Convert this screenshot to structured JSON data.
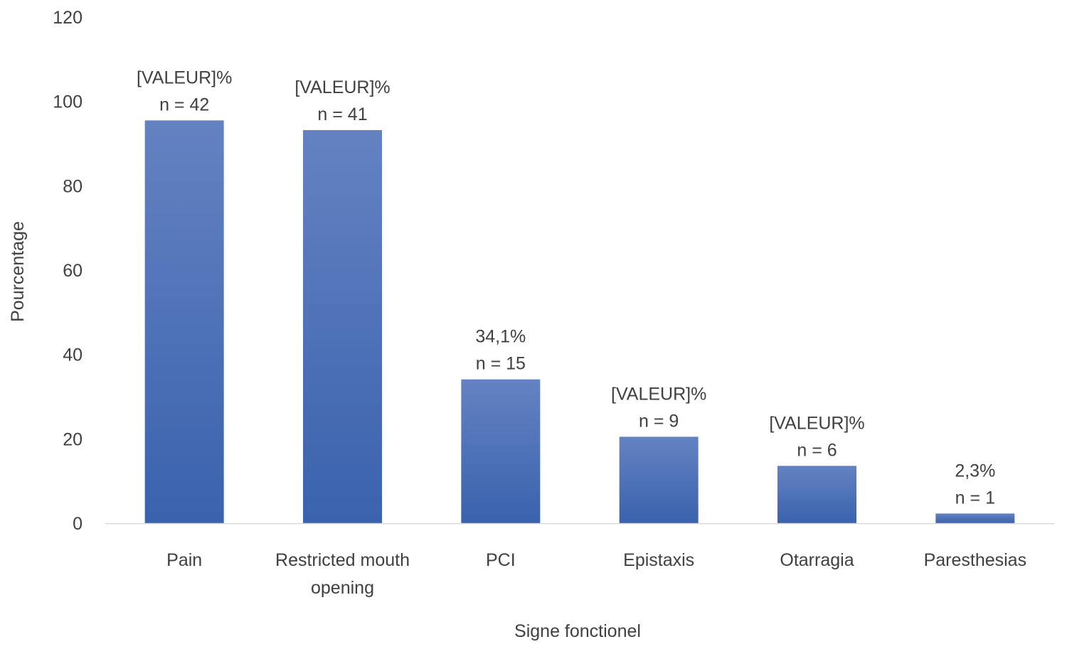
{
  "chart_data": {
    "type": "bar",
    "title": "",
    "xlabel": "Signe fonctionel",
    "ylabel": "Pourcentage",
    "ylim": [
      0,
      120
    ],
    "yticks": [
      0,
      20,
      40,
      60,
      80,
      100,
      120
    ],
    "grid": false,
    "legend": "none",
    "bar_color_top": "#6482c2",
    "bar_color_bottom": "#3a62ad",
    "categories": [
      [
        "Pain"
      ],
      [
        "Restricted mouth",
        "opening"
      ],
      [
        "PCI"
      ],
      [
        "Epistaxis"
      ],
      [
        "Otarragia"
      ],
      [
        "Paresthesias"
      ]
    ],
    "values": [
      95.5,
      93.2,
      34.1,
      20.5,
      13.6,
      2.3
    ],
    "data_labels": [
      [
        "[VALEUR]%",
        "n = 42"
      ],
      [
        "[VALEUR]%",
        "n = 41"
      ],
      [
        "34,1%",
        "n = 15"
      ],
      [
        "[VALEUR]%",
        "n = 9"
      ],
      [
        "[VALEUR]%",
        "n = 6"
      ],
      [
        "2,3%",
        "n = 1"
      ]
    ]
  }
}
